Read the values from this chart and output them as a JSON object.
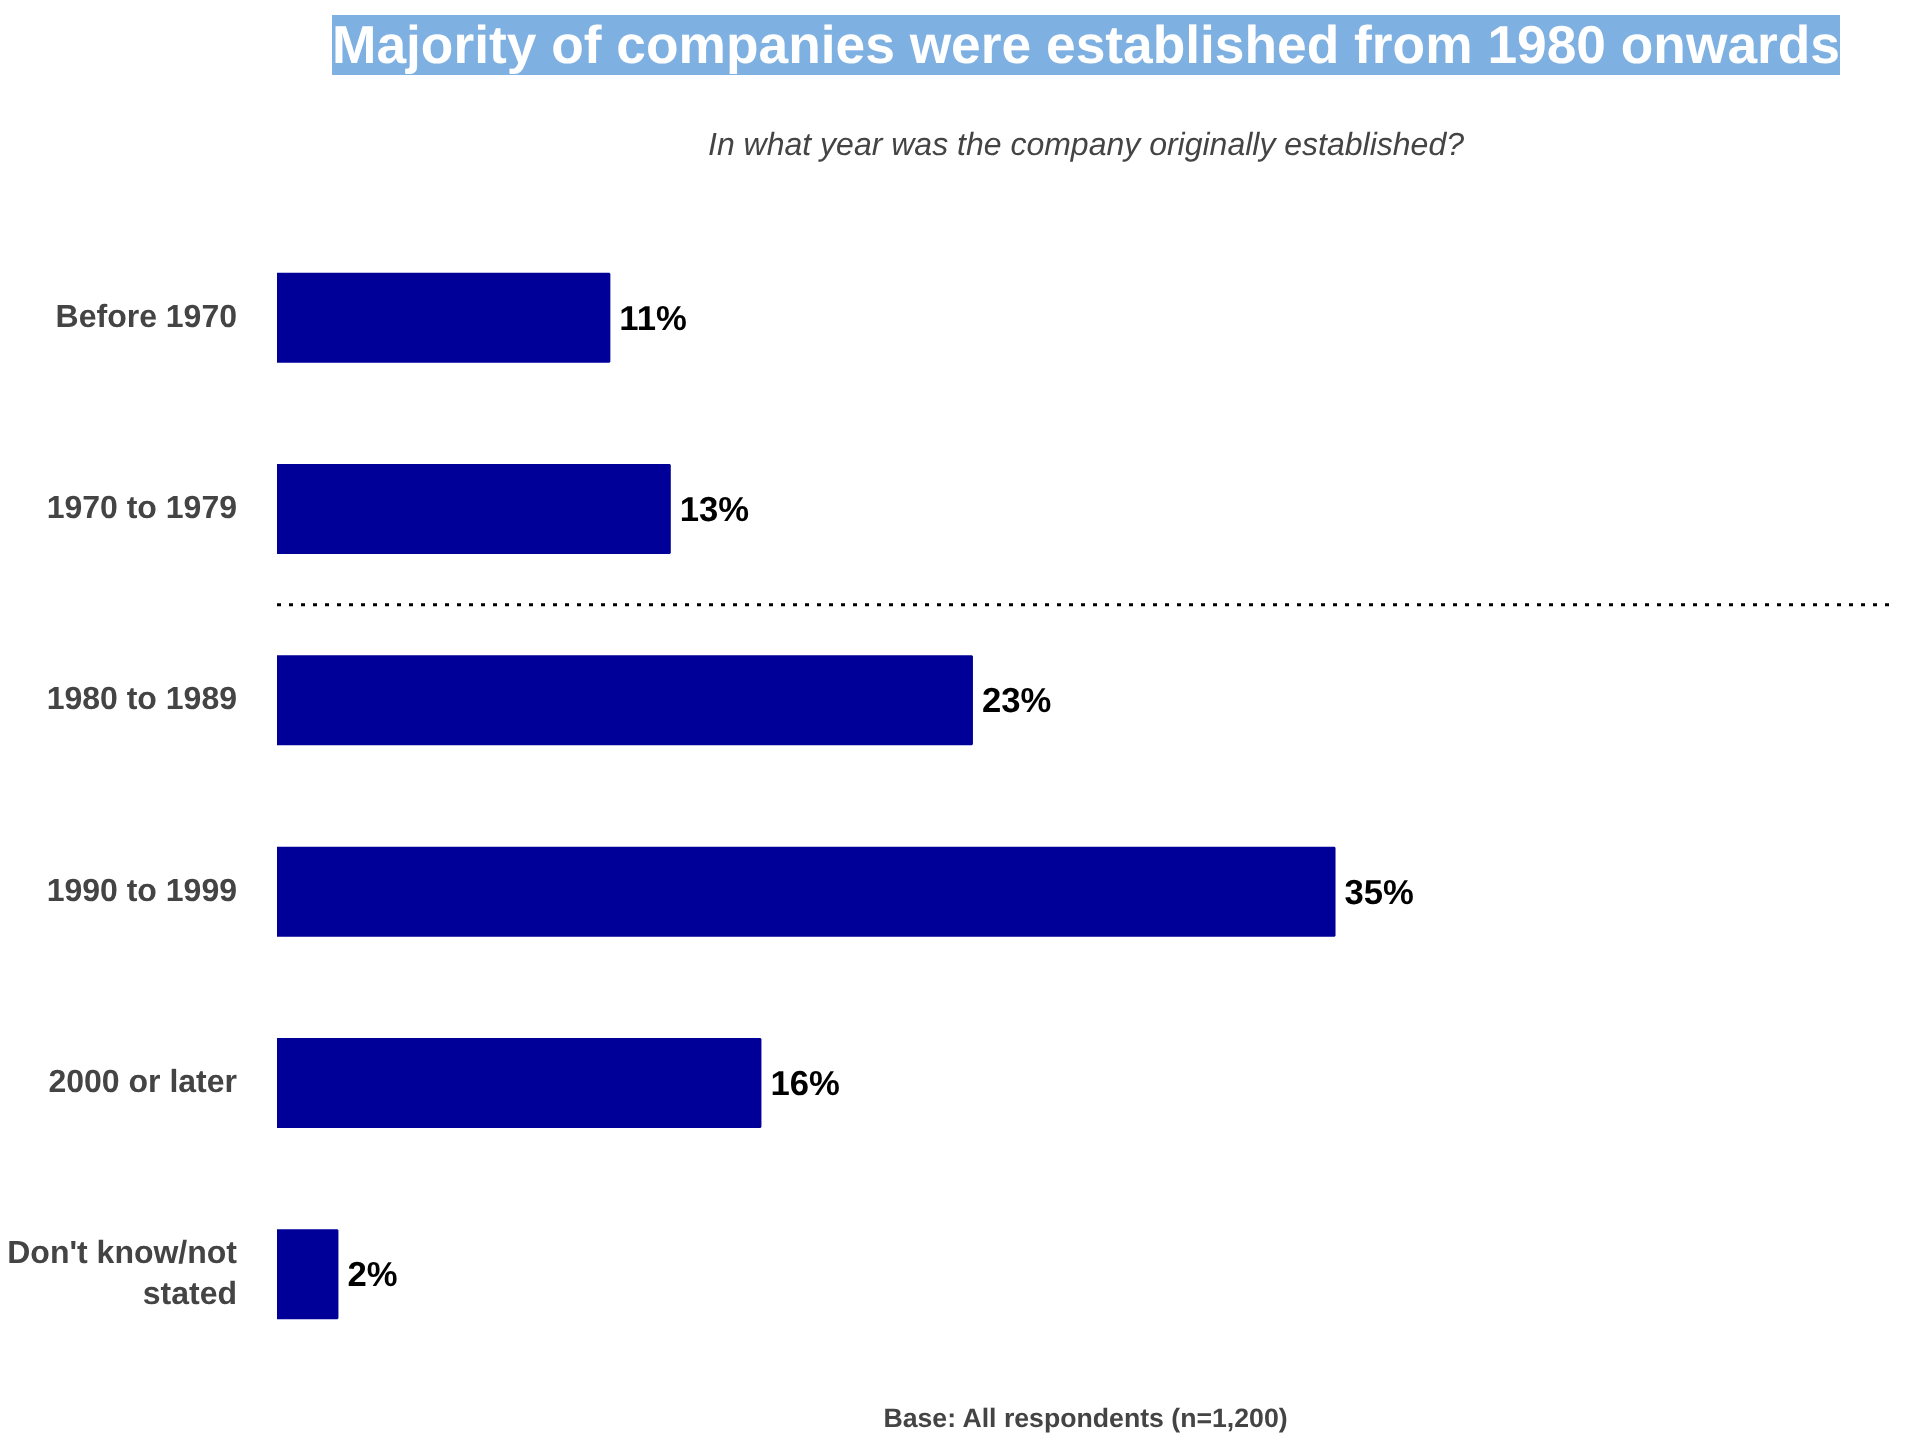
{
  "chart_data": {
    "type": "bar",
    "orientation": "horizontal",
    "title": "Majority of companies were established from 1980 onwards",
    "subtitle": "In what year was the company originally established?",
    "categories": [
      "Before 1970",
      "1970 to 1979",
      "1980 to 1989",
      "1990 to 1999",
      "2000 or later",
      "Don't know/not stated"
    ],
    "values": [
      11,
      13,
      23,
      35,
      16,
      2
    ],
    "value_labels": [
      "11%",
      "13%",
      "23%",
      "35%",
      "16%",
      "2%"
    ],
    "color": "#000099",
    "annotations": [
      "Base: All respondents (n=1,200)"
    ],
    "grid": false
  }
}
